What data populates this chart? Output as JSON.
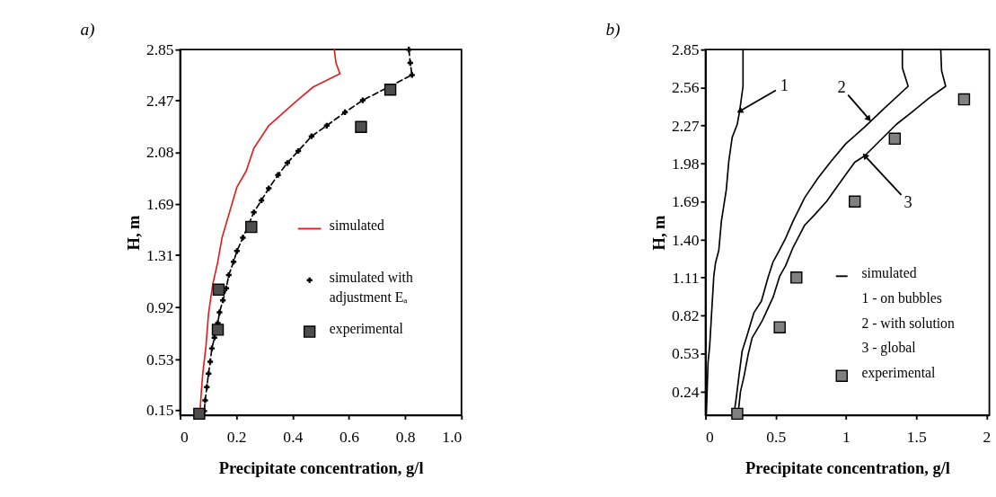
{
  "chart_data": [
    {
      "type": "line",
      "title": "a)",
      "xlabel": "Precipitate concentration, g/l",
      "ylabel": "H, m",
      "xlim": [
        0,
        1
      ],
      "xticks": [
        0,
        0.2,
        0.4,
        0.6,
        0.8,
        {
          "value": 1,
          "label": "1.0"
        }
      ],
      "ylim": [
        0.11,
        2.85
      ],
      "yticks": [
        0.15,
        0.53,
        0.92,
        1.31,
        1.69,
        2.08,
        2.47,
        2.85
      ],
      "grid": false,
      "legend": "right",
      "series": [
        {
          "name": "simulated",
          "color": "#e02020",
          "marker": "none",
          "line_style": "solid",
          "x": [
            0.548,
            0.554,
            0.568,
            0.473,
            0.411,
            0.315,
            0.262,
            0.235,
            0.202,
            0.188,
            0.149,
            0.134,
            0.116,
            0.101,
            0.092,
            0.08,
            0.074,
            0.071
          ],
          "values": [
            2.85,
            2.75,
            2.67,
            2.57,
            2.46,
            2.28,
            2.11,
            1.94,
            1.82,
            1.72,
            1.44,
            1.26,
            1.09,
            0.87,
            0.63,
            0.41,
            0.24,
            0.14
          ]
        },
        {
          "name": "simulated with adjustment Eₐ",
          "color": "#000000",
          "marker": "cross",
          "line_style": "dashed",
          "x": [
            0.813,
            0.818,
            0.824,
            0.649,
            0.586,
            0.521,
            0.467,
            0.42,
            0.381,
            0.348,
            0.315,
            0.289,
            0.262,
            0.223,
            0.202,
            0.19,
            0.173,
            0.164,
            0.152,
            0.14,
            0.134,
            0.122,
            0.113,
            0.107,
            0.101,
            0.095,
            0.089,
            0.086
          ],
          "values": [
            2.85,
            2.75,
            2.66,
            2.47,
            2.38,
            2.28,
            2.2,
            2.09,
            2.0,
            1.91,
            1.81,
            1.72,
            1.63,
            1.44,
            1.34,
            1.26,
            1.16,
            1.06,
            0.97,
            0.88,
            0.8,
            0.69,
            0.61,
            0.51,
            0.42,
            0.32,
            0.22,
            0.14
          ]
        },
        {
          "name": "experimental",
          "type": "scatter",
          "color": "#4d4d4d",
          "marker": "square",
          "x": [
            0.747,
            0.643,
            0.253,
            0.137,
            0.134,
            0.068
          ],
          "values": [
            2.55,
            2.27,
            1.52,
            1.05,
            0.75,
            0.12
          ]
        }
      ]
    },
    {
      "type": "line",
      "title": "b)",
      "xlabel": "Precipitate concentration, g/l",
      "ylabel": "H, m",
      "xlim": [
        0,
        2.02
      ],
      "xticks": [
        0,
        0.5,
        1,
        1.5,
        2
      ],
      "ylim": [
        0.06,
        2.85
      ],
      "yticks": [
        0.24,
        0.53,
        0.82,
        1.11,
        {
          "value": 1.4,
          "label": "1.40"
        },
        1.69,
        1.98,
        2.27,
        2.56,
        2.85
      ],
      "grid": false,
      "legend": "bottom right",
      "annotations": [
        {
          "text": "1",
          "x": 0.243,
          "y": 2.38
        },
        {
          "text": "2",
          "x": 1.163,
          "y": 2.32
        },
        {
          "text": "3",
          "x": 1.134,
          "y": 2.04
        },
        "simulated",
        "1 - on bubbles",
        "2 - with solution",
        "3 - global"
      ],
      "series": [
        {
          "color": "#000000",
          "marker": "none",
          "line_style": "solid",
          "x": [
            0.267,
            0.267,
            0.243,
            0.226,
            0.19,
            0.166,
            0.148,
            0.113,
            0.095,
            0.071,
            0.059,
            0.042,
            0.03,
            0.018,
            0.012,
            0.006
          ],
          "values": [
            2.85,
            2.57,
            2.38,
            2.28,
            2.18,
            2.0,
            1.78,
            1.54,
            1.32,
            1.22,
            1.12,
            0.81,
            0.59,
            0.46,
            0.26,
            0.06
          ]
        },
        {
          "color": "#000000",
          "marker": "none",
          "line_style": "solid",
          "x": [
            1.401,
            1.401,
            1.442,
            1.27,
            1.134,
            0.997,
            0.896,
            0.801,
            0.706,
            0.623,
            0.57,
            0.522,
            0.481,
            0.445,
            0.398,
            0.344,
            0.291,
            0.261,
            0.237,
            0.22,
            0.202
          ],
          "values": [
            2.85,
            2.71,
            2.57,
            2.4,
            2.26,
            2.13,
            2.0,
            1.87,
            1.72,
            1.54,
            1.41,
            1.31,
            1.23,
            1.11,
            0.93,
            0.84,
            0.65,
            0.55,
            0.35,
            0.2,
            0.06
          ]
        },
        {
          "color": "#000000",
          "marker": "none",
          "line_style": "solid",
          "x": [
            1.674,
            1.68,
            1.709,
            1.591,
            1.466,
            1.359,
            1.246,
            1.134,
            1.062,
            0.967,
            0.861,
            0.777,
            0.706,
            0.623,
            0.57,
            0.528,
            0.481,
            0.404,
            0.332,
            0.303,
            0.273,
            0.249,
            0.231
          ],
          "values": [
            2.85,
            2.69,
            2.57,
            2.48,
            2.37,
            2.28,
            2.16,
            2.04,
            1.99,
            1.85,
            1.69,
            1.59,
            1.51,
            1.34,
            1.2,
            1.12,
            0.96,
            0.78,
            0.65,
            0.52,
            0.35,
            0.24,
            0.06
          ]
        },
        {
          "name": "experimental",
          "type": "scatter",
          "color": "#808080",
          "marker": "square",
          "x": [
            1.84,
            1.347,
            1.062,
            0.647,
            0.528,
            0.226
          ],
          "values": [
            2.47,
            2.17,
            1.69,
            1.11,
            0.73,
            0.07
          ]
        }
      ]
    }
  ]
}
